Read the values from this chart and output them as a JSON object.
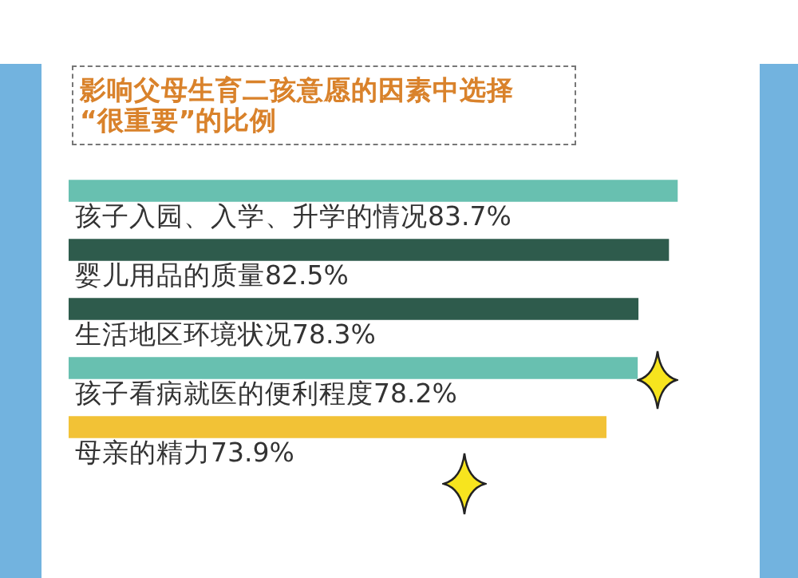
{
  "chart_data": {
    "type": "bar",
    "orientation": "horizontal",
    "title": "影响父母生育二孩意愿的因素中选择\n“很重要”的比例",
    "categories": [
      "孩子入园、入学、升学的情况",
      "婴儿用品的质量",
      "生活地区环境状况",
      "孩子看病就医的便利程度",
      "母亲的精力"
    ],
    "values": [
      83.7,
      82.5,
      78.3,
      78.2,
      73.9
    ],
    "value_labels": [
      "83.7%",
      "82.5%",
      "78.3%",
      "78.2%",
      "73.9%"
    ],
    "colors": [
      "#68c0b0",
      "#2e5b4c",
      "#2e5b4c",
      "#68c0b0",
      "#f2c236"
    ]
  }
}
